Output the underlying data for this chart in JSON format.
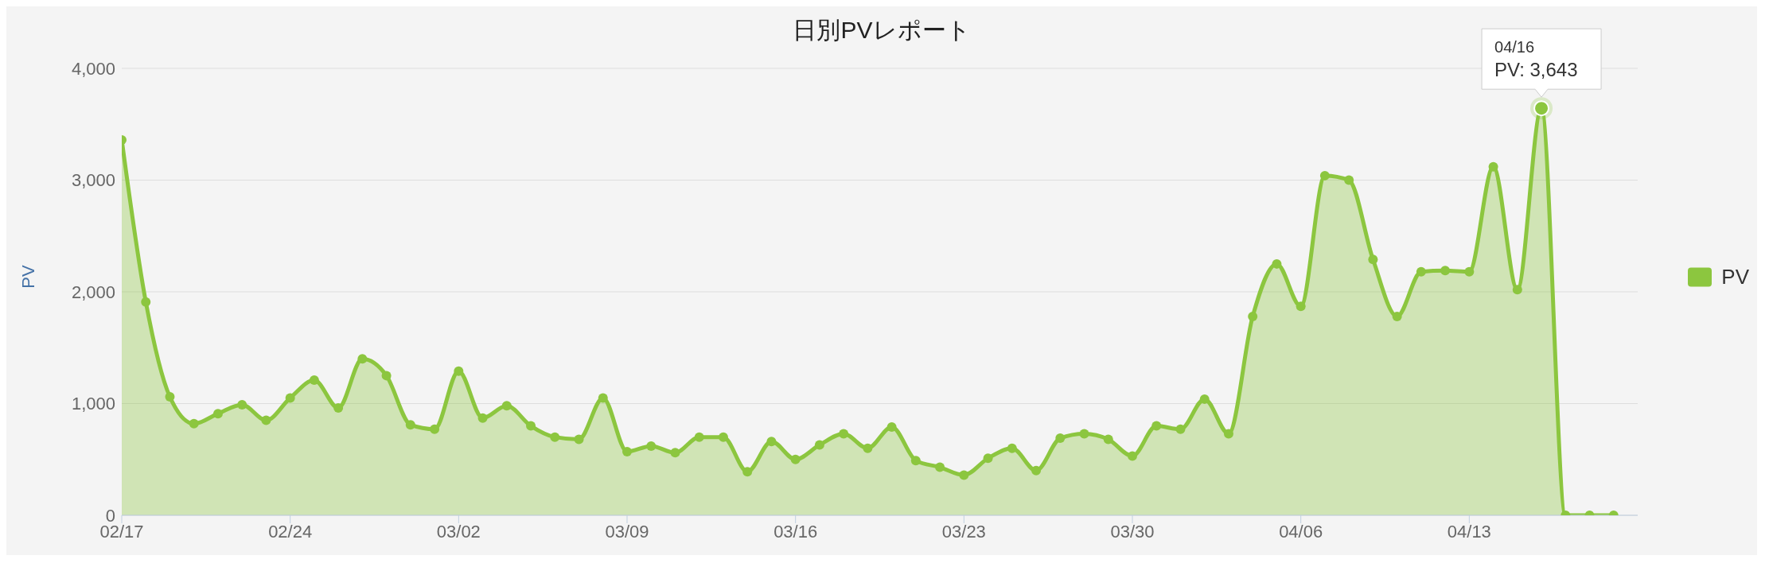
{
  "chart_data": {
    "type": "area",
    "title": "日別PVレポート",
    "ylabel": "PV",
    "x": [
      "--02-17",
      "--02-18",
      "--02-19",
      "--02-20",
      "--02-21",
      "--02-22",
      "--02-23",
      "--02-24",
      "--02-25",
      "--02-26",
      "--02-27",
      "--02-28",
      "--02-29",
      "--03-01",
      "--03-02",
      "--03-03",
      "--03-04",
      "--03-05",
      "--03-06",
      "--03-07",
      "--03-08",
      "--03-09",
      "--03-10",
      "--03-11",
      "--03-12",
      "--03-13",
      "--03-14",
      "--03-15",
      "--03-16",
      "--03-17",
      "--03-18",
      "--03-19",
      "--03-20",
      "--03-21",
      "--03-22",
      "--03-23",
      "--03-24",
      "--03-25",
      "--03-26",
      "--03-27",
      "--03-28",
      "--03-29",
      "--03-30",
      "--03-31",
      "--04-01",
      "--04-02",
      "--04-03",
      "--04-04",
      "--04-05",
      "--04-06",
      "--04-07",
      "--04-08",
      "--04-09",
      "--04-10",
      "--04-11",
      "--04-12",
      "--04-13",
      "--04-14",
      "--04-15",
      "--04-16",
      "--04-17",
      "--04-18",
      "--04-19"
    ],
    "series": [
      {
        "name": "PV",
        "color": "#8cc63f",
        "values": [
          3360,
          1910,
          1060,
          820,
          910,
          990,
          850,
          1050,
          1210,
          960,
          1400,
          1250,
          810,
          770,
          1290,
          870,
          980,
          800,
          700,
          680,
          1050,
          570,
          620,
          560,
          700,
          700,
          390,
          660,
          500,
          630,
          730,
          600,
          790,
          490,
          430,
          360,
          510,
          600,
          400,
          690,
          730,
          680,
          530,
          800,
          770,
          1040,
          730,
          1780,
          2250,
          1870,
          3040,
          3000,
          2290,
          1780,
          2180,
          2190,
          2180,
          3120,
          2020,
          3643,
          0,
          0,
          0
        ]
      }
    ],
    "xlim": [
      "--02-17",
      "--04-20"
    ],
    "xticks": [
      {
        "value": "--02-17",
        "label": "02/17"
      },
      {
        "value": "--02-24",
        "label": "02/24"
      },
      {
        "value": "--03-02",
        "label": "03/02"
      },
      {
        "value": "--03-09",
        "label": "03/09"
      },
      {
        "value": "--03-16",
        "label": "03/16"
      },
      {
        "value": "--03-23",
        "label": "03/23"
      },
      {
        "value": "--03-30",
        "label": "03/30"
      },
      {
        "value": "--04-06",
        "label": "04/06"
      },
      {
        "value": "--04-13",
        "label": "04/13"
      }
    ],
    "ylim": [
      0,
      4000
    ],
    "yticks": [
      {
        "value": 0,
        "label": "0"
      },
      {
        "value": 1000,
        "label": "1,000"
      },
      {
        "value": 2000,
        "label": "2,000"
      },
      {
        "value": 3000,
        "label": "3,000"
      },
      {
        "value": 4000,
        "label": "4,000"
      }
    ],
    "grid": "y",
    "legend": "right",
    "marker": "circle",
    "line_style": "solid",
    "annotations": [
      {
        "text": "04/16\nPV: 3,643",
        "x": "--04-16",
        "y": 3643
      }
    ]
  }
}
